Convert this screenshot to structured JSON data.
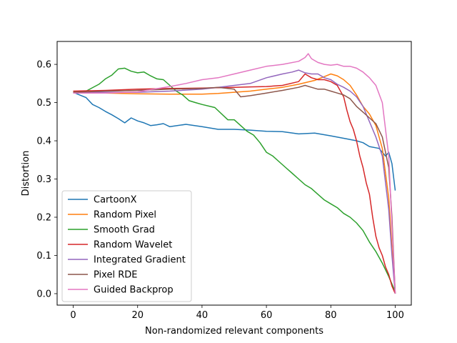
{
  "chart_data": {
    "type": "line",
    "title": "",
    "xlabel": "Non-randomized relevant components",
    "ylabel": "Distortion",
    "xlim": [
      -5,
      105
    ],
    "ylim": [
      -0.03,
      0.66
    ],
    "x_ticks": [
      0,
      20,
      40,
      60,
      80,
      100
    ],
    "y_ticks": [
      0.0,
      0.1,
      0.2,
      0.3,
      0.4,
      0.5,
      0.6
    ],
    "x_tick_labels": [
      "0",
      "20",
      "40",
      "60",
      "80",
      "100"
    ],
    "y_tick_labels": [
      "0.0",
      "0.1",
      "0.2",
      "0.3",
      "0.4",
      "0.5",
      "0.6"
    ],
    "grid": false,
    "legend_position": "lower-left",
    "series": [
      {
        "name": "CartoonX",
        "color": "#1f77b4",
        "x": [
          0,
          2,
          4,
          6,
          8,
          10,
          12,
          14,
          16,
          18,
          20,
          22,
          24,
          26,
          28,
          30,
          35,
          40,
          45,
          50,
          55,
          60,
          65,
          70,
          75,
          80,
          85,
          88,
          90,
          92,
          95,
          97,
          98,
          99,
          100
        ],
        "y": [
          0.527,
          0.52,
          0.513,
          0.495,
          0.487,
          0.477,
          0.468,
          0.458,
          0.447,
          0.46,
          0.452,
          0.447,
          0.44,
          0.442,
          0.445,
          0.437,
          0.443,
          0.437,
          0.43,
          0.43,
          0.428,
          0.425,
          0.424,
          0.418,
          0.42,
          0.413,
          0.405,
          0.4,
          0.395,
          0.385,
          0.38,
          0.36,
          0.37,
          0.34,
          0.27
        ]
      },
      {
        "name": "Random Pixel",
        "color": "#ff7f0e",
        "x": [
          0,
          10,
          20,
          30,
          40,
          45,
          50,
          55,
          60,
          65,
          70,
          75,
          78,
          80,
          82,
          84,
          86,
          88,
          90,
          92,
          94,
          96,
          98,
          99,
          100
        ],
        "y": [
          0.528,
          0.525,
          0.523,
          0.522,
          0.522,
          0.524,
          0.527,
          0.53,
          0.535,
          0.54,
          0.548,
          0.558,
          0.568,
          0.575,
          0.57,
          0.56,
          0.545,
          0.52,
          0.49,
          0.47,
          0.44,
          0.38,
          0.25,
          0.12,
          0.0
        ]
      },
      {
        "name": "Smooth Grad",
        "color": "#2ca02c",
        "x": [
          0,
          4,
          8,
          10,
          12,
          14,
          16,
          18,
          20,
          22,
          24,
          26,
          28,
          30,
          32,
          34,
          36,
          38,
          40,
          44,
          48,
          50,
          52,
          54,
          56,
          58,
          60,
          62,
          64,
          66,
          68,
          70,
          72,
          74,
          76,
          78,
          80,
          82,
          84,
          86,
          88,
          90,
          92,
          94,
          96,
          98,
          100
        ],
        "y": [
          0.527,
          0.53,
          0.548,
          0.562,
          0.572,
          0.588,
          0.59,
          0.582,
          0.578,
          0.58,
          0.57,
          0.562,
          0.56,
          0.545,
          0.53,
          0.52,
          0.505,
          0.5,
          0.495,
          0.487,
          0.455,
          0.455,
          0.44,
          0.425,
          0.415,
          0.395,
          0.37,
          0.36,
          0.345,
          0.33,
          0.315,
          0.3,
          0.285,
          0.275,
          0.26,
          0.245,
          0.235,
          0.225,
          0.21,
          0.2,
          0.185,
          0.165,
          0.135,
          0.11,
          0.08,
          0.045,
          0.005
        ]
      },
      {
        "name": "Random Wavelet",
        "color": "#d62728",
        "x": [
          0,
          10,
          20,
          30,
          40,
          50,
          55,
          60,
          65,
          70,
          72,
          74,
          76,
          78,
          80,
          82,
          84,
          85,
          86,
          87,
          88,
          89,
          90,
          91,
          92,
          93,
          94,
          95,
          96,
          97,
          98,
          99,
          100
        ],
        "y": [
          0.53,
          0.532,
          0.535,
          0.537,
          0.538,
          0.54,
          0.541,
          0.542,
          0.545,
          0.555,
          0.575,
          0.565,
          0.56,
          0.56,
          0.555,
          0.545,
          0.515,
          0.48,
          0.45,
          0.43,
          0.4,
          0.36,
          0.33,
          0.29,
          0.26,
          0.2,
          0.15,
          0.12,
          0.1,
          0.07,
          0.05,
          0.02,
          0.0
        ]
      },
      {
        "name": "Integrated Gradient",
        "color": "#9467bd",
        "x": [
          0,
          10,
          20,
          30,
          40,
          45,
          50,
          55,
          60,
          65,
          68,
          70,
          72,
          74,
          76,
          78,
          80,
          82,
          84,
          86,
          88,
          90,
          92,
          94,
          96,
          98,
          99,
          100
        ],
        "y": [
          0.527,
          0.527,
          0.527,
          0.53,
          0.535,
          0.54,
          0.545,
          0.55,
          0.565,
          0.575,
          0.58,
          0.585,
          0.578,
          0.575,
          0.575,
          0.565,
          0.56,
          0.548,
          0.54,
          0.53,
          0.515,
          0.49,
          0.45,
          0.41,
          0.36,
          0.22,
          0.1,
          0.0
        ]
      },
      {
        "name": "Pixel RDE",
        "color": "#8c564b",
        "x": [
          0,
          10,
          20,
          30,
          40,
          45,
          50,
          52,
          55,
          60,
          65,
          70,
          72,
          74,
          76,
          78,
          80,
          82,
          84,
          86,
          88,
          90,
          92,
          94,
          96,
          98,
          99,
          100
        ],
        "y": [
          0.527,
          0.53,
          0.532,
          0.535,
          0.537,
          0.54,
          0.535,
          0.515,
          0.518,
          0.525,
          0.532,
          0.54,
          0.545,
          0.54,
          0.535,
          0.535,
          0.53,
          0.525,
          0.52,
          0.51,
          0.49,
          0.475,
          0.46,
          0.445,
          0.41,
          0.33,
          0.2,
          0.0
        ]
      },
      {
        "name": "Guided Backprop",
        "color": "#e377c2",
        "x": [
          0,
          10,
          20,
          25,
          30,
          35,
          40,
          45,
          50,
          55,
          60,
          65,
          70,
          72,
          73,
          74,
          76,
          78,
          80,
          82,
          84,
          86,
          88,
          90,
          92,
          94,
          96,
          98,
          99,
          100
        ],
        "y": [
          0.525,
          0.525,
          0.528,
          0.535,
          0.542,
          0.55,
          0.56,
          0.565,
          0.575,
          0.585,
          0.595,
          0.6,
          0.608,
          0.618,
          0.628,
          0.615,
          0.605,
          0.6,
          0.598,
          0.6,
          0.595,
          0.595,
          0.59,
          0.58,
          0.565,
          0.545,
          0.5,
          0.36,
          0.18,
          0.0
        ]
      }
    ]
  }
}
